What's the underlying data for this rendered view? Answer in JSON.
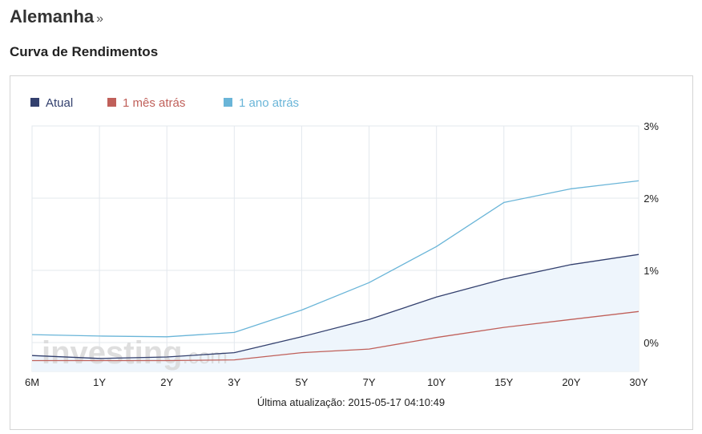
{
  "page": {
    "title": "Alemanha",
    "title_arrow": "»",
    "section": "Curva de Rendimentos"
  },
  "footer": {
    "last_update": "Última atualização: 2015-05-17 04:10:49"
  },
  "watermark": {
    "text_main": "investing",
    "text_suffix": ".com"
  },
  "colors": {
    "atual": "#33406e",
    "mes": "#c0605a",
    "ano": "#6ab5d8",
    "area": "#eef5fc",
    "grid": "#e3e8ee"
  },
  "chart_data": {
    "type": "line",
    "categories": [
      "6M",
      "1Y",
      "2Y",
      "3Y",
      "5Y",
      "7Y",
      "10Y",
      "15Y",
      "20Y",
      "30Y"
    ],
    "ylim": [
      -0.4,
      3.0
    ],
    "yticks": [
      0,
      1,
      2,
      3
    ],
    "ytick_labels": [
      "0%",
      "1%",
      "2%",
      "3%"
    ],
    "grid": true,
    "legend_position": "top-left",
    "series": [
      {
        "name": "Atual",
        "color": "#33406e",
        "filled": true,
        "values": [
          -0.18,
          -0.22,
          -0.2,
          -0.14,
          0.08,
          0.32,
          0.63,
          0.88,
          1.08,
          1.22
        ]
      },
      {
        "name": "1 mês atrás",
        "color": "#c0605a",
        "filled": false,
        "values": [
          -0.25,
          -0.25,
          -0.25,
          -0.24,
          -0.14,
          -0.09,
          0.07,
          0.21,
          0.32,
          0.43
        ]
      },
      {
        "name": "1 ano atrás",
        "color": "#6ab5d8",
        "filled": false,
        "values": [
          0.11,
          0.09,
          0.08,
          0.14,
          0.45,
          0.83,
          1.33,
          1.94,
          2.13,
          2.24
        ]
      }
    ]
  }
}
